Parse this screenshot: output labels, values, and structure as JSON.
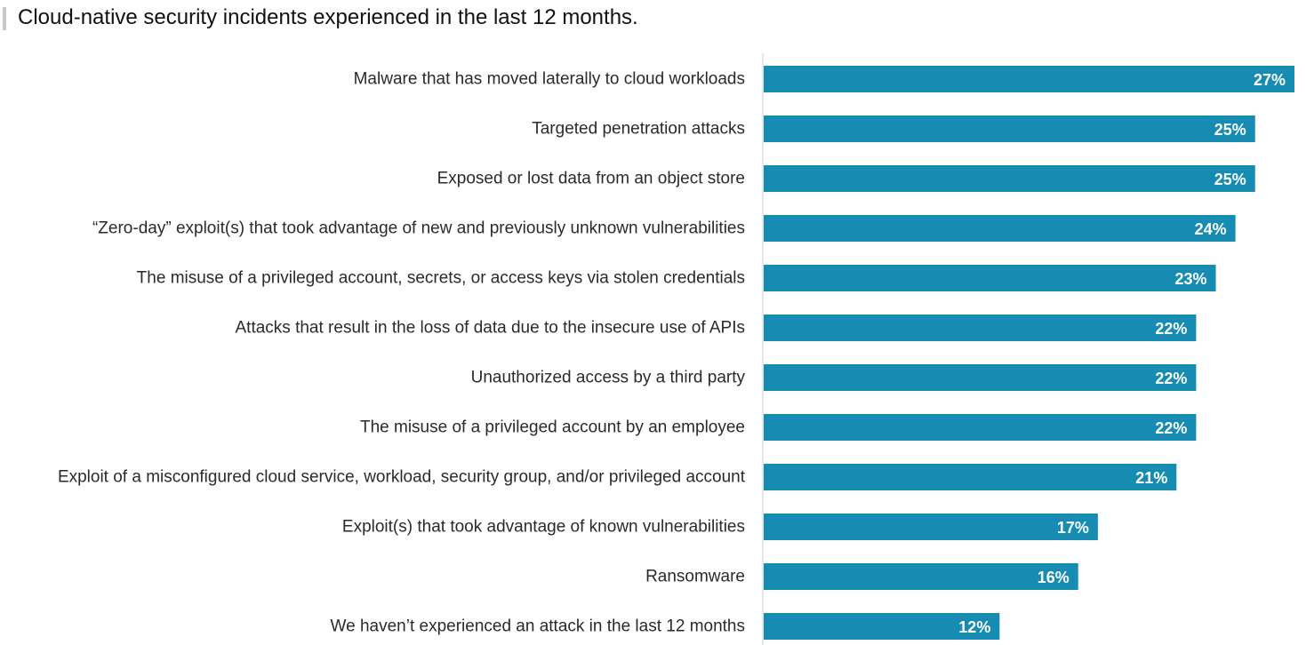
{
  "colors": {
    "bar": "#168cb2",
    "axis": "#cfcfcf",
    "label_text": "#2a2a2a",
    "value_text": "#ffffff"
  },
  "chart_data": {
    "type": "bar",
    "orientation": "horizontal",
    "title": "Cloud-native security incidents experienced in the last 12 months.",
    "xlabel": "",
    "ylabel": "",
    "xlim": [
      0,
      27
    ],
    "grid": false,
    "legend": "none",
    "categories": [
      "Malware that has moved laterally to cloud workloads",
      "Targeted penetration attacks",
      "Exposed or lost data from an object store",
      "“Zero-day” exploit(s) that took advantage of new and previously unknown vulnerabilities",
      "The misuse of a privileged account, secrets, or access keys via stolen credentials",
      "Attacks that result in the loss of data due to the insecure use of APIs",
      "Unauthorized access by a third party",
      "The misuse of a privileged account by an employee",
      "Exploit of a misconfigured cloud service, workload, security group, and/or privileged account",
      "Exploit(s) that took advantage of known vulnerabilities",
      "Ransomware",
      "We haven’t experienced an attack in the last 12 months"
    ],
    "values": [
      27,
      25,
      25,
      24,
      23,
      22,
      22,
      22,
      21,
      17,
      16,
      12
    ],
    "value_labels": [
      "27%",
      "25%",
      "25%",
      "24%",
      "23%",
      "22%",
      "22%",
      "22%",
      "21%",
      "17%",
      "16%",
      "12%"
    ]
  }
}
